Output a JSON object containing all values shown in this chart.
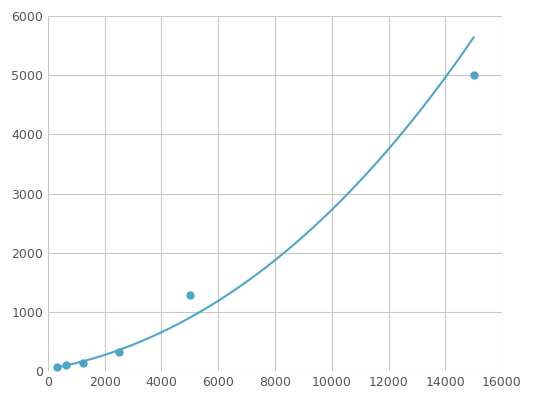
{
  "x": [
    312.5,
    625,
    1250,
    2500,
    5000,
    15000
  ],
  "y": [
    64,
    100,
    130,
    320,
    1280,
    5000
  ],
  "line_color": "#4da6c8",
  "marker_color": "#4da6c8",
  "marker_size": 5,
  "line_width": 1.5,
  "xlim": [
    0,
    16000
  ],
  "ylim": [
    0,
    6000
  ],
  "xticks": [
    0,
    2000,
    4000,
    6000,
    8000,
    10000,
    12000,
    14000,
    16000
  ],
  "yticks": [
    0,
    1000,
    2000,
    3000,
    4000,
    5000,
    6000
  ],
  "grid_color": "#c8c8c8",
  "background_color": "#ffffff",
  "tick_fontsize": 9
}
